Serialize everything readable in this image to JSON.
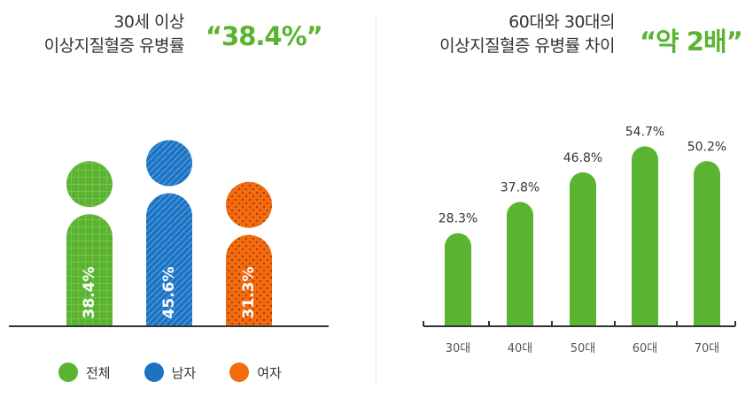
{
  "left": {
    "title_line1": "30세 이상",
    "title_line2": "이상지질혈증 유병률",
    "highlight": "“38.4%”",
    "legend": [
      {
        "label": "전체",
        "color": "#5bb431"
      },
      {
        "label": "남자",
        "color": "#1b73c2"
      },
      {
        "label": "여자",
        "color": "#f36b0f"
      }
    ]
  },
  "right": {
    "title_line1": "60대와 30대의",
    "title_line2": "이상지질혈증 유병률 차이",
    "highlight": "“약 2배”"
  },
  "colors": {
    "total": "#5bb431",
    "male": "#1b73c2",
    "female": "#f36b0f",
    "axis": "#333333"
  },
  "chart_data": [
    {
      "type": "bar",
      "categories": [
        "전체",
        "남자",
        "여자"
      ],
      "values": [
        38.4,
        45.6,
        31.3
      ],
      "labels": [
        "38.4%",
        "45.6%",
        "31.3%"
      ],
      "icon": "person-pictogram"
    },
    {
      "type": "bar",
      "categories": [
        "30대",
        "40대",
        "50대",
        "60대",
        "70대"
      ],
      "values": [
        28.3,
        37.8,
        46.8,
        54.7,
        50.2
      ],
      "labels": [
        "28.3%",
        "37.8%",
        "46.8%",
        "54.7%",
        "50.2%"
      ]
    }
  ]
}
